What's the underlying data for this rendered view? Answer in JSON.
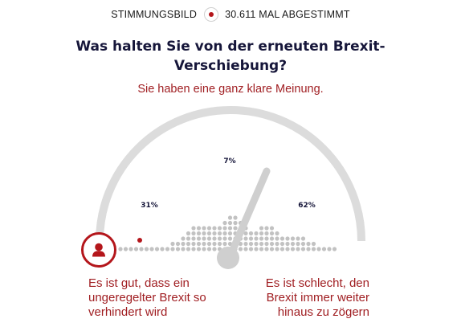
{
  "header": {
    "label": "STIMMUNGSBILD",
    "votes": "30.611 MAL ABGESTIMMT",
    "accent_color": "#b4161b"
  },
  "question": "Was halten Sie von der erneuten Brexit-Verschiebung?",
  "subtitle": "Sie haben eine ganz klare Meinung.",
  "gauge": {
    "left_percent_label": "31%",
    "middle_percent_label": "7%",
    "right_percent_label": "62%",
    "needle_color": "#c9c9c9",
    "user_marker_color": "#b4161b",
    "user_icon": "user-icon"
  },
  "options": {
    "left": "Es ist gut, dass ein ungeregelter Brexit so verhindert wird",
    "right": "Es ist schlecht, den Brexit immer weiter hinaus zu zögern"
  }
}
